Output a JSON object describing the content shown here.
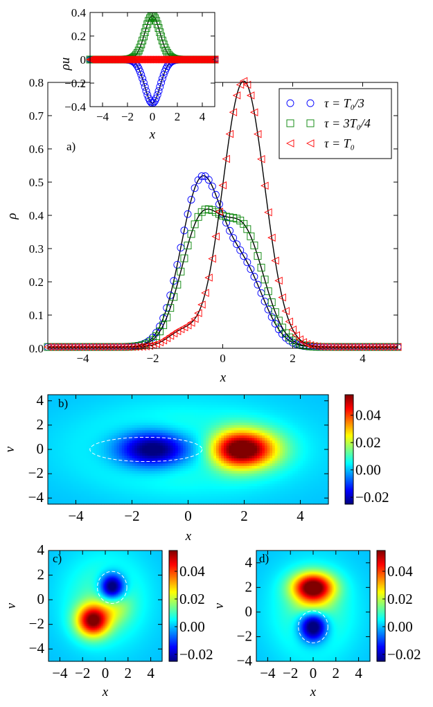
{
  "colors": {
    "blue": "#0000ff",
    "green": "#008000",
    "red": "#ff0000",
    "line": "#000000"
  },
  "chart_data": [
    {
      "id": "a",
      "type": "line",
      "panel_label": "a)",
      "xlabel": "x",
      "ylabel": "ρ",
      "xlim": [
        -5,
        5
      ],
      "ylim": [
        0,
        0.8
      ],
      "xticks": [
        -4,
        -2,
        0,
        2,
        4
      ],
      "xtick_labels": [
        "−4",
        "−2",
        "0",
        "2",
        "4"
      ],
      "yticks": [
        0,
        0.1,
        0.2,
        0.3,
        0.4,
        0.5,
        0.6,
        0.7,
        0.8
      ],
      "ytick_labels": [
        "0.0",
        "0.1",
        "0.2",
        "0.3",
        "0.4",
        "0.5",
        "0.6",
        "0.7",
        "0.8"
      ],
      "legend_position": "top-right",
      "series": [
        {
          "name": "τ = T0/3",
          "legend": "τ = T₀/3",
          "marker": "circle",
          "color": "blue",
          "peaks": [
            {
              "center": -0.62,
              "amp": 0.49,
              "width": 0.58
            },
            {
              "center": 0.62,
              "amp": 0.22,
              "width": 0.58
            }
          ]
        },
        {
          "name": "τ = 3T0/4",
          "legend": "τ = 3T₀/4",
          "marker": "square",
          "color": "green",
          "peaks": [
            {
              "center": -0.62,
              "amp": 0.37,
              "width": 0.58
            },
            {
              "center": 0.62,
              "amp": 0.33,
              "width": 0.58
            }
          ]
        },
        {
          "name": "τ = T0",
          "legend": "τ = T₀",
          "marker": "triangle-left",
          "color": "red",
          "peaks": [
            {
              "center": 0.6,
              "amp": 0.8,
              "width": 0.6
            },
            {
              "center": -1.15,
              "amp": 0.045,
              "width": 0.42
            }
          ]
        }
      ]
    },
    {
      "id": "a-inset",
      "type": "line",
      "xlabel": "x",
      "ylabel": "ρu",
      "xlim": [
        -5,
        5
      ],
      "ylim": [
        -0.4,
        0.4
      ],
      "xticks": [
        -4,
        -2,
        0,
        2,
        4
      ],
      "xtick_labels": [
        "−4",
        "−2",
        "0",
        "2",
        "4"
      ],
      "yticks": [
        -0.4,
        -0.2,
        0,
        0.2,
        0.4
      ],
      "ytick_labels": [
        "−0.4",
        "−0.2",
        "0",
        "0.2",
        "0.4"
      ],
      "series": [
        {
          "name": "τ = T0/3",
          "marker": "circle",
          "color": "blue",
          "amp": -0.37,
          "width": 0.62
        },
        {
          "name": "τ = 3T0/4",
          "marker": "square",
          "color": "green",
          "amp": 0.37,
          "width": 0.62
        },
        {
          "name": "τ = T0",
          "marker": "triangle-left",
          "color": "red",
          "amp": 0.0,
          "width": 0.62
        }
      ]
    },
    {
      "id": "b",
      "type": "heatmap",
      "panel_label": "b)",
      "xlabel": "x",
      "ylabel": "v",
      "xlim": [
        -5,
        5
      ],
      "ylim": [
        -4.5,
        4.5
      ],
      "xticks": [
        -4,
        -2,
        0,
        2,
        4
      ],
      "xtick_labels": [
        "−4",
        "−2",
        "0",
        "2",
        "4"
      ],
      "yticks": [
        -4,
        -2,
        0,
        2,
        4
      ],
      "ytick_labels": [
        "−4",
        "−2",
        "0",
        "2",
        "4"
      ],
      "clim": [
        -0.025,
        0.055
      ],
      "cbar_ticks": [
        -0.02,
        0,
        0.02,
        0.04
      ],
      "cbar_tick_labels": [
        "−0.02",
        "0.00",
        "0.02",
        "0.04"
      ],
      "components": [
        {
          "x0": -1.2,
          "v0": 0,
          "sx": 0.95,
          "sv": 1.05,
          "amp": -0.039
        },
        {
          "x0": 1.9,
          "v0": 0,
          "sx": 0.85,
          "sv": 1.05,
          "amp": 0.056
        },
        {
          "x0": 0.7,
          "v0": 0,
          "sx": 0.55,
          "sv": 1.3,
          "amp": -0.012
        },
        {
          "x0": 0,
          "v0": 0,
          "sx": 2.6,
          "sv": 2.4,
          "amp": 0.013
        }
      ],
      "dashed_ellipse": {
        "cx": -1.5,
        "cv": 0,
        "rx": 2.0,
        "rv": 1.0
      }
    },
    {
      "id": "c",
      "type": "heatmap",
      "panel_label": "c)",
      "xlabel": "x",
      "ylabel": "v",
      "xlim": [
        -5,
        5
      ],
      "ylim": [
        -5,
        4
      ],
      "xticks": [
        -4,
        -2,
        0,
        2,
        4
      ],
      "xtick_labels": [
        "−4",
        "−2",
        "0",
        "2",
        "4"
      ],
      "yticks": [
        -4,
        -2,
        0,
        2,
        4
      ],
      "ytick_labels": [
        "−4",
        "−2",
        "0",
        "2",
        "4"
      ],
      "clim": [
        -0.025,
        0.055
      ],
      "cbar_ticks": [
        -0.02,
        0,
        0.02,
        0.04
      ],
      "cbar_tick_labels": [
        "−0.02",
        "0.00",
        "0.02",
        "0.04"
      ],
      "components": [
        {
          "x0": 0.6,
          "v0": 1.0,
          "sx": 0.75,
          "sv": 0.75,
          "amp": -0.04
        },
        {
          "x0": -1.1,
          "v0": -1.7,
          "sx": 1.0,
          "sv": 0.9,
          "amp": 0.05
        },
        {
          "x0": 1.0,
          "v0": -0.6,
          "sx": 0.9,
          "sv": 0.9,
          "amp": 0.01
        },
        {
          "x0": 0,
          "v0": 0,
          "sx": 2.6,
          "sv": 2.6,
          "amp": 0.012
        }
      ],
      "dashed_ellipse": {
        "cx": 0.6,
        "cv": 1.0,
        "rx": 1.3,
        "rv": 1.3
      }
    },
    {
      "id": "d",
      "type": "heatmap",
      "panel_label": "d)",
      "xlabel": "x",
      "ylabel": "v",
      "xlim": [
        -5,
        5
      ],
      "ylim": [
        -4,
        5
      ],
      "xticks": [
        -4,
        -2,
        0,
        2,
        4
      ],
      "xtick_labels": [
        "−4",
        "−2",
        "0",
        "2",
        "4"
      ],
      "yticks": [
        -4,
        -2,
        0,
        2,
        4
      ],
      "ytick_labels": [
        "−4",
        "−2",
        "0",
        "2",
        "4"
      ],
      "clim": [
        -0.025,
        0.055
      ],
      "cbar_ticks": [
        -0.02,
        0,
        0.02,
        0.04
      ],
      "cbar_tick_labels": [
        "−0.02",
        "0.00",
        "0.02",
        "0.04"
      ],
      "components": [
        {
          "x0": 0,
          "v0": -1.2,
          "sx": 0.85,
          "sv": 0.85,
          "amp": -0.04
        },
        {
          "x0": 0,
          "v0": 2.0,
          "sx": 1.25,
          "sv": 0.8,
          "amp": 0.055
        },
        {
          "x0": 0,
          "v0": 0.4,
          "sx": 1.1,
          "sv": 0.6,
          "amp": 0.008
        },
        {
          "x0": 0,
          "v0": 0,
          "sx": 2.6,
          "sv": 2.7,
          "amp": 0.012
        }
      ],
      "dashed_ellipse": {
        "cx": 0,
        "cv": -1.2,
        "rx": 1.3,
        "rv": 1.3
      }
    }
  ]
}
